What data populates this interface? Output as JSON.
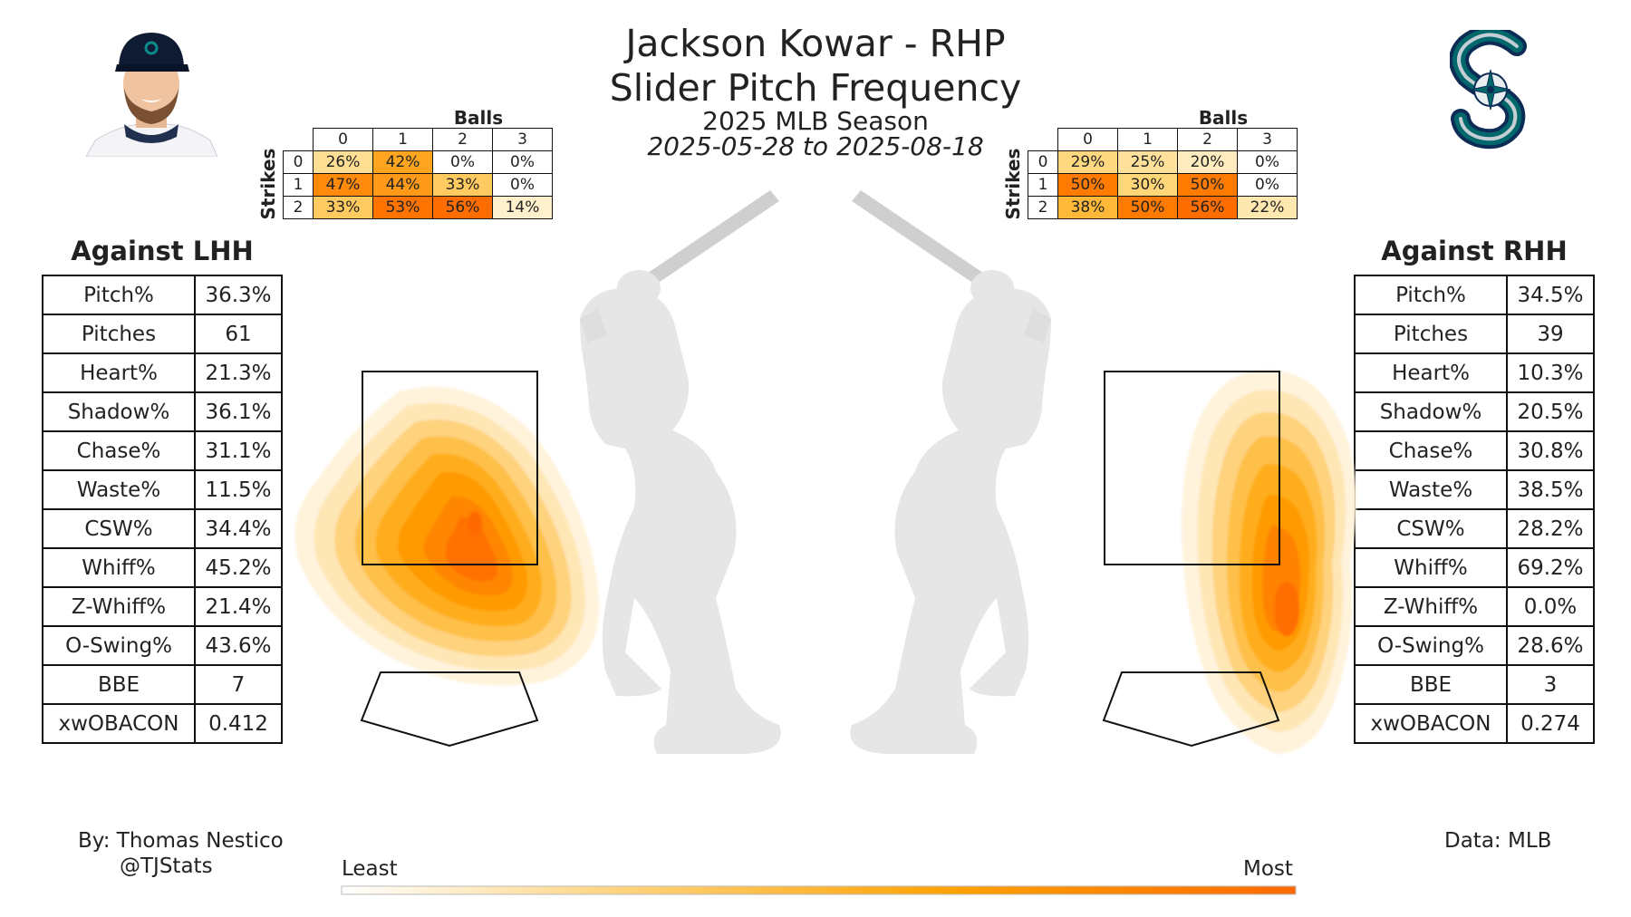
{
  "header": {
    "title_line1": "Jackson Kowar - RHP",
    "title_line2": "Slider Pitch Frequency",
    "season": "2025 MLB Season",
    "date_range": "2025-05-28 to 2025-08-18"
  },
  "count_grids": {
    "balls_label": "Balls",
    "strikes_label": "Strikes",
    "ball_counts": [
      "0",
      "1",
      "2",
      "3"
    ],
    "strike_counts": [
      "0",
      "1",
      "2"
    ],
    "lhh": [
      [
        "26%",
        "42%",
        "0%",
        "0%"
      ],
      [
        "47%",
        "44%",
        "33%",
        "0%"
      ],
      [
        "33%",
        "53%",
        "56%",
        "14%"
      ]
    ],
    "rhh": [
      [
        "29%",
        "25%",
        "20%",
        "0%"
      ],
      [
        "50%",
        "30%",
        "50%",
        "0%"
      ],
      [
        "38%",
        "50%",
        "56%",
        "22%"
      ]
    ]
  },
  "lhh": {
    "heading": "Against LHH",
    "stats": [
      {
        "label": "Pitch%",
        "value": "36.3%"
      },
      {
        "label": "Pitches",
        "value": "61"
      },
      {
        "label": "Heart%",
        "value": "21.3%"
      },
      {
        "label": "Shadow%",
        "value": "36.1%"
      },
      {
        "label": "Chase%",
        "value": "31.1%"
      },
      {
        "label": "Waste%",
        "value": "11.5%"
      },
      {
        "label": "CSW%",
        "value": "34.4%"
      },
      {
        "label": "Whiff%",
        "value": "45.2%"
      },
      {
        "label": "Z-Whiff%",
        "value": "21.4%"
      },
      {
        "label": "O-Swing%",
        "value": "43.6%"
      },
      {
        "label": "BBE",
        "value": "7"
      },
      {
        "label": "xwOBACON",
        "value": "0.412"
      }
    ]
  },
  "rhh": {
    "heading": "Against RHH",
    "stats": [
      {
        "label": "Pitch%",
        "value": "34.5%"
      },
      {
        "label": "Pitches",
        "value": "39"
      },
      {
        "label": "Heart%",
        "value": "10.3%"
      },
      {
        "label": "Shadow%",
        "value": "20.5%"
      },
      {
        "label": "Chase%",
        "value": "30.8%"
      },
      {
        "label": "Waste%",
        "value": "38.5%"
      },
      {
        "label": "CSW%",
        "value": "28.2%"
      },
      {
        "label": "Whiff%",
        "value": "69.2%"
      },
      {
        "label": "Z-Whiff%",
        "value": "0.0%"
      },
      {
        "label": "O-Swing%",
        "value": "28.6%"
      },
      {
        "label": "BBE",
        "value": "3"
      },
      {
        "label": "xwOBACON",
        "value": "0.274"
      }
    ]
  },
  "legend": {
    "least": "Least",
    "most": "Most"
  },
  "footer": {
    "by": "By: Thomas Nestico",
    "handle": "@TJStats",
    "data_source": "Data: MLB"
  },
  "colors": {
    "heat_low": "#fff3d9",
    "heat_mid": "#ffb000",
    "heat_high": "#ff6a00",
    "silhouette": "#e6e6e6",
    "team_navy": "#0c2c56",
    "team_teal": "#005c5c"
  },
  "icons": {
    "player_headshot": "player-headshot",
    "team_logo": "team-logo",
    "batter_silhouette": "batter-silhouette"
  }
}
